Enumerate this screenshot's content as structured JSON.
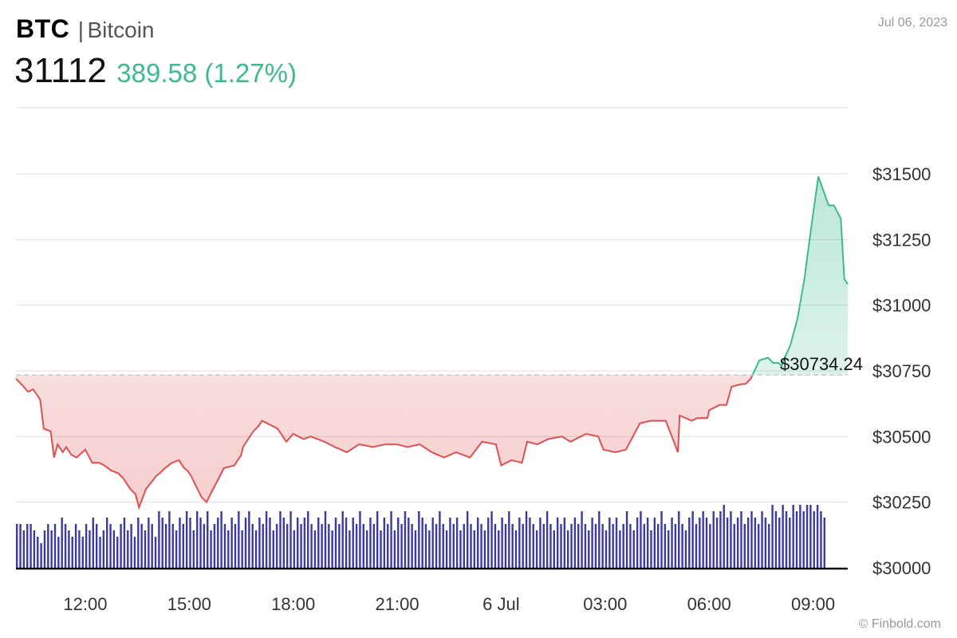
{
  "header": {
    "symbol": "BTC",
    "separator": "|",
    "name": "Bitcoin",
    "price": "31112",
    "change": "389.58 (1.27%)",
    "date": "Jul 06, 2023"
  },
  "credit": "© Finbold.com",
  "colors": {
    "up": "#3dba8f",
    "down": "#e05050",
    "volume": "#3b3aa5",
    "grid": "#dddddd",
    "baseline": "#cccccc"
  },
  "chart_data": {
    "type": "area",
    "y_range": [
      30000,
      31500
    ],
    "y_ticks": [
      "$31500",
      "$31250",
      "$31000",
      "$30750",
      "$30500",
      "$30250",
      "$30000"
    ],
    "x_ticks": [
      "12:00",
      "15:00",
      "18:00",
      "21:00",
      "6 Jul",
      "03:00",
      "06:00",
      "09:00"
    ],
    "baseline_value": 30734.24,
    "baseline_label": "$30734.24",
    "x_span_hours": [
      0,
      24
    ],
    "x_tick_hours": [
      2,
      5,
      8,
      11,
      14,
      17,
      20,
      23
    ],
    "series": [
      {
        "hours": [
          0.0,
          0.15,
          0.35,
          0.5,
          0.7,
          0.8,
          1.0,
          1.1,
          1.2,
          1.35,
          1.45,
          1.6,
          1.75,
          2.0,
          2.2,
          2.4,
          2.55,
          2.75,
          2.95,
          3.1,
          3.3,
          3.45,
          3.55,
          3.75,
          4.05,
          4.15,
          4.3,
          4.5,
          4.7,
          4.85,
          4.95,
          5.05,
          5.2,
          5.35,
          5.5,
          5.65,
          5.85,
          6.0,
          6.3,
          6.5,
          6.55,
          6.75,
          6.85,
          7.0,
          7.1,
          7.4,
          7.55,
          7.8,
          8.0,
          8.3,
          8.5,
          8.7,
          8.9,
          9.2,
          9.55,
          9.9,
          10.3,
          10.65,
          11.0,
          11.3,
          11.65,
          12.0,
          12.35,
          12.7,
          13.1,
          13.45,
          13.85,
          14.0,
          14.3,
          14.6,
          14.75,
          15.05,
          15.35,
          15.75,
          16.0,
          16.45,
          16.8,
          16.95,
          17.3,
          17.6,
          18.0,
          18.3,
          18.75,
          19.1,
          19.15,
          19.5,
          19.65,
          19.95,
          20.0,
          20.3,
          20.5,
          20.65,
          20.95,
          21.05,
          21.2,
          21.45,
          21.7,
          21.85,
          22.0,
          22.1,
          22.15,
          22.35,
          22.55,
          22.75,
          22.85,
          22.95,
          23.15,
          23.45,
          23.6,
          23.8,
          23.9,
          24.0
        ],
        "values": [
          30720,
          30700,
          30670,
          30680,
          30640,
          30530,
          30520,
          30420,
          30470,
          30440,
          30460,
          30430,
          30420,
          30450,
          30400,
          30400,
          30390,
          30370,
          30360,
          30340,
          30300,
          30280,
          30230,
          30300,
          30350,
          30360,
          30380,
          30400,
          30410,
          30380,
          30370,
          30350,
          30310,
          30270,
          30250,
          30290,
          30340,
          30380,
          30390,
          30430,
          30460,
          30500,
          30520,
          30540,
          30560,
          30540,
          30530,
          30480,
          30510,
          30490,
          30500,
          30490,
          30480,
          30460,
          30440,
          30470,
          30460,
          30470,
          30470,
          30460,
          30470,
          30440,
          30420,
          30440,
          30420,
          30480,
          30470,
          30390,
          30410,
          30400,
          30480,
          30470,
          30490,
          30500,
          30480,
          30510,
          30500,
          30450,
          30440,
          30450,
          30550,
          30560,
          30560,
          30440,
          30580,
          30560,
          30570,
          30570,
          30600,
          30620,
          30620,
          30690,
          30700,
          30700,
          30720,
          30790,
          30800,
          30780,
          30780,
          30770,
          30790,
          30850,
          30950,
          31100,
          31200,
          31300,
          31490,
          31380,
          31380,
          31330,
          31100,
          31080
        ]
      }
    ],
    "volume": {
      "hours_step": 0.1,
      "values": [
        0.7,
        0.7,
        0.6,
        0.7,
        0.7,
        0.6,
        0.5,
        0.4,
        0.6,
        0.7,
        0.6,
        0.7,
        0.5,
        0.8,
        0.7,
        0.6,
        0.5,
        0.7,
        0.6,
        0.5,
        0.7,
        0.6,
        0.8,
        0.7,
        0.5,
        0.6,
        0.8,
        0.7,
        0.6,
        0.5,
        0.7,
        0.8,
        0.6,
        0.7,
        0.5,
        0.8,
        0.7,
        0.6,
        0.8,
        0.7,
        0.5,
        0.9,
        0.8,
        0.7,
        0.9,
        0.7,
        0.6,
        0.8,
        0.7,
        0.9,
        0.8,
        0.6,
        0.9,
        0.8,
        0.7,
        0.9,
        0.6,
        0.7,
        0.8,
        0.9,
        0.7,
        0.6,
        0.8,
        0.7,
        0.9,
        0.6,
        0.8,
        0.9,
        0.7,
        0.6,
        0.8,
        0.7,
        0.9,
        0.8,
        0.6,
        0.7,
        0.9,
        0.8,
        0.7,
        0.9,
        0.6,
        0.8,
        0.7,
        0.8,
        0.9,
        0.7,
        0.6,
        0.8,
        0.7,
        0.9,
        0.7,
        0.6,
        0.8,
        0.7,
        0.9,
        0.8,
        0.6,
        0.8,
        0.7,
        0.9,
        0.7,
        0.6,
        0.8,
        0.7,
        0.9,
        0.6,
        0.8,
        0.7,
        0.9,
        0.6,
        0.8,
        0.7,
        0.9,
        0.8,
        0.7,
        0.6,
        0.9,
        0.8,
        0.7,
        0.6,
        0.8,
        0.7,
        0.9,
        0.7,
        0.6,
        0.8,
        0.7,
        0.8,
        0.6,
        0.7,
        0.9,
        0.7,
        0.6,
        0.8,
        0.7,
        0.6,
        0.8,
        0.9,
        0.7,
        0.6,
        0.8,
        0.7,
        0.9,
        0.7,
        0.6,
        0.8,
        0.7,
        0.9,
        0.8,
        0.7,
        0.6,
        0.8,
        0.7,
        0.9,
        0.7,
        0.6,
        0.8,
        0.7,
        0.8,
        0.6,
        0.7,
        0.8,
        0.7,
        0.9,
        0.7,
        0.6,
        0.8,
        0.7,
        0.9,
        0.7,
        0.6,
        0.8,
        0.7,
        0.8,
        0.6,
        0.7,
        0.9,
        0.7,
        0.6,
        0.8,
        0.9,
        0.7,
        0.8,
        0.6,
        0.8,
        0.7,
        0.9,
        0.7,
        0.6,
        0.8,
        0.7,
        0.9,
        0.7,
        0.6,
        0.8,
        0.9,
        0.7,
        0.8,
        0.9,
        0.8,
        0.7,
        0.9,
        0.8,
        0.9,
        1.0,
        0.8,
        0.9,
        0.7,
        0.8,
        0.9,
        0.7,
        0.8,
        0.9,
        0.8,
        0.7,
        0.9,
        0.8,
        0.7,
        1.0,
        0.9,
        0.8,
        1.0,
        0.9,
        0.8,
        1.0,
        0.9,
        1.0,
        0.9,
        1.0,
        1.0,
        0.9,
        1.0,
        0.9,
        0.8
      ]
    }
  }
}
